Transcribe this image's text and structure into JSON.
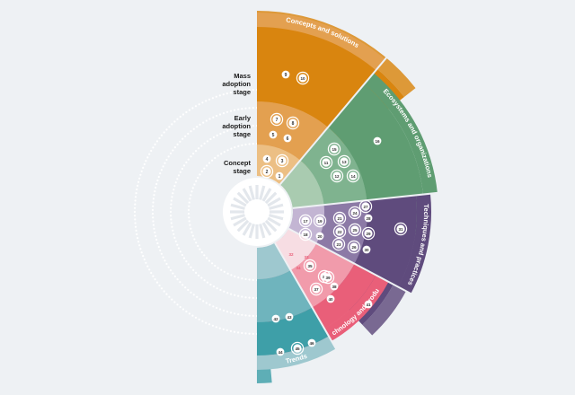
{
  "colors": {
    "background": "#eef1f4",
    "dots": "#ffffff"
  },
  "stages": {
    "mass_adoption": {
      "line1": "Mass",
      "line2": "adoption",
      "line3": "stage"
    },
    "early_adoption": {
      "line1": "Early",
      "line2": "adoption",
      "line3": "stage"
    },
    "concept": {
      "line1": "Concept",
      "line2": "stage"
    }
  },
  "sectors": [
    {
      "key": "concepts",
      "label": "Concepts and solutions",
      "color": "#d9850f",
      "rings": [
        "#ecbf84",
        "#e3a050",
        "#d9850f"
      ]
    },
    {
      "key": "ecosystems",
      "label": "Ecosystems and organizations",
      "color": "#5f9d72",
      "rings": [
        "#a9cbb0",
        "#7fb38f",
        "#5f9d72"
      ]
    },
    {
      "key": "techniques",
      "label": "Techniques and practices",
      "color": "#5f4b7d",
      "rings": [
        "#c3b5d3",
        "#8c7aa6",
        "#5f4b7d"
      ]
    },
    {
      "key": "technology",
      "label": "Technology and products",
      "color": "#e95f79",
      "rings": [
        "#f7dde3",
        "#f19bab",
        "#e95f79"
      ]
    },
    {
      "key": "trends",
      "label": "Trends",
      "color": "#3e9fa8",
      "rings": [
        "#9ec8cf",
        "#6fb4bd",
        "#3e9fa8"
      ]
    }
  ],
  "items": [
    {
      "n": "1",
      "sector": "concepts",
      "ring": "concept",
      "circled": false
    },
    {
      "n": "2",
      "sector": "concepts",
      "ring": "concept",
      "circled": true
    },
    {
      "n": "3",
      "sector": "concepts",
      "ring": "concept",
      "circled": true
    },
    {
      "n": "4",
      "sector": "concepts",
      "ring": "concept",
      "circled": false
    },
    {
      "n": "5",
      "sector": "concepts",
      "ring": "early",
      "circled": false
    },
    {
      "n": "6",
      "sector": "concepts",
      "ring": "early",
      "circled": false
    },
    {
      "n": "7",
      "sector": "concepts",
      "ring": "early",
      "circled": true
    },
    {
      "n": "8",
      "sector": "concepts",
      "ring": "early",
      "circled": true
    },
    {
      "n": "9",
      "sector": "concepts",
      "ring": "mass",
      "circled": false
    },
    {
      "n": "10",
      "sector": "concepts",
      "ring": "mass",
      "circled": true
    },
    {
      "n": "11",
      "sector": "ecosystems",
      "ring": "early",
      "circled": true
    },
    {
      "n": "12",
      "sector": "ecosystems",
      "ring": "early",
      "circled": true
    },
    {
      "n": "13",
      "sector": "ecosystems",
      "ring": "early",
      "circled": true
    },
    {
      "n": "14",
      "sector": "ecosystems",
      "ring": "early",
      "circled": true
    },
    {
      "n": "15",
      "sector": "ecosystems",
      "ring": "early",
      "circled": true
    },
    {
      "n": "16",
      "sector": "ecosystems",
      "ring": "mass",
      "circled": false
    },
    {
      "n": "17",
      "sector": "techniques",
      "ring": "concept",
      "circled": true
    },
    {
      "n": "18",
      "sector": "techniques",
      "ring": "concept",
      "circled": true
    },
    {
      "n": "19",
      "sector": "techniques",
      "ring": "concept",
      "circled": true
    },
    {
      "n": "20",
      "sector": "techniques",
      "ring": "concept",
      "circled": false
    },
    {
      "n": "21",
      "sector": "techniques",
      "ring": "early",
      "circled": true
    },
    {
      "n": "22",
      "sector": "techniques",
      "ring": "early",
      "circled": true
    },
    {
      "n": "23",
      "sector": "techniques",
      "ring": "early",
      "circled": true
    },
    {
      "n": "24",
      "sector": "techniques",
      "ring": "early",
      "circled": true
    },
    {
      "n": "25",
      "sector": "techniques",
      "ring": "early",
      "circled": true
    },
    {
      "n": "26",
      "sector": "techniques",
      "ring": "early",
      "circled": true
    },
    {
      "n": "27",
      "sector": "techniques",
      "ring": "early",
      "circled": true
    },
    {
      "n": "28",
      "sector": "techniques",
      "ring": "early",
      "circled": false
    },
    {
      "n": "29",
      "sector": "techniques",
      "ring": "early",
      "circled": true
    },
    {
      "n": "30",
      "sector": "techniques",
      "ring": "early",
      "circled": false
    },
    {
      "n": "31",
      "sector": "techniques",
      "ring": "mass",
      "circled": true
    },
    {
      "n": "32",
      "sector": "technology",
      "ring": "concept",
      "circled": false
    },
    {
      "n": "33",
      "sector": "technology",
      "ring": "concept",
      "circled": false
    },
    {
      "n": "34",
      "sector": "technology",
      "ring": "concept",
      "circled": false
    },
    {
      "n": "35",
      "sector": "technology",
      "ring": "early",
      "circled": true
    },
    {
      "n": "36",
      "sector": "technology",
      "ring": "early",
      "circled": true
    },
    {
      "n": "37",
      "sector": "technology",
      "ring": "early",
      "circled": true
    },
    {
      "n": "38",
      "sector": "technology",
      "ring": "early",
      "circled": false
    },
    {
      "n": "39",
      "sector": "technology",
      "ring": "early",
      "circled": true
    },
    {
      "n": "40",
      "sector": "technology",
      "ring": "early",
      "circled": false
    },
    {
      "n": "41",
      "sector": "technology",
      "ring": "mass",
      "circled": false
    },
    {
      "n": "42",
      "sector": "trends",
      "ring": "early",
      "circled": false
    },
    {
      "n": "43",
      "sector": "trends",
      "ring": "early",
      "circled": false
    },
    {
      "n": "44",
      "sector": "trends",
      "ring": "mass",
      "circled": false
    },
    {
      "n": "45",
      "sector": "trends",
      "ring": "mass",
      "circled": true
    },
    {
      "n": "46",
      "sector": "trends",
      "ring": "mass",
      "circled": false
    }
  ]
}
